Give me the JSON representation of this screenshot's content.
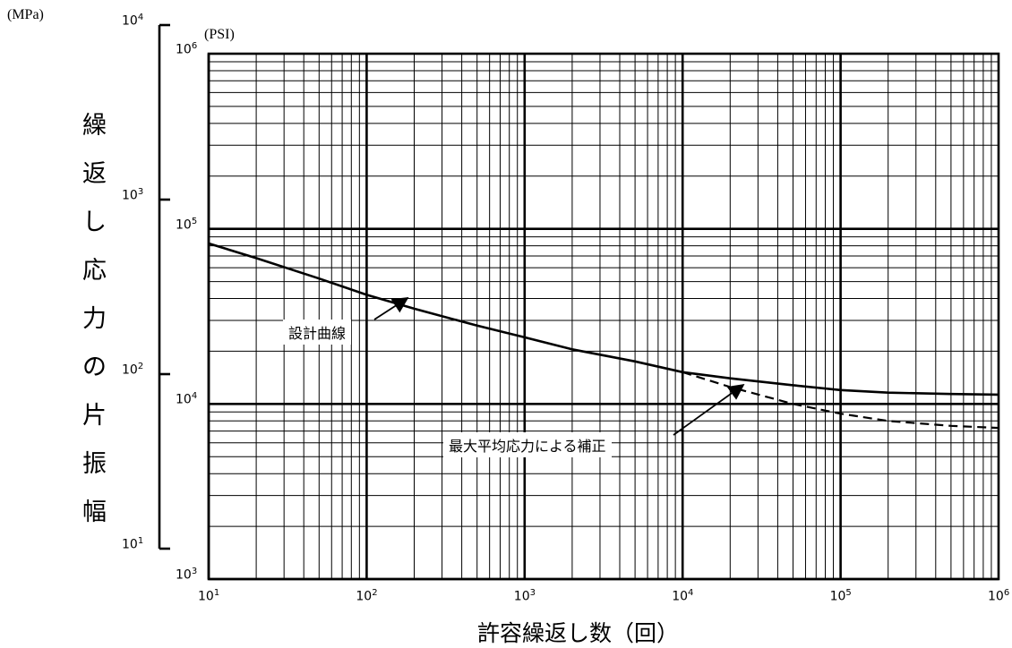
{
  "chart_data": {
    "type": "line",
    "xlabel": "許容繰返し数（回）",
    "ylabel": "繰返し応力の片振幅",
    "left_axis_unit": "(MPa)",
    "right_axis_unit": "(PSI)",
    "x_scale": "log",
    "y_scale": "log",
    "xlim": [
      10,
      1000000
    ],
    "ylim_psi": [
      1000,
      1000000
    ],
    "ylim_mpa": [
      10,
      10000
    ],
    "grid": true,
    "x_ticks": [
      {
        "base": "10",
        "exp": "1"
      },
      {
        "base": "10",
        "exp": "2"
      },
      {
        "base": "10",
        "exp": "3"
      },
      {
        "base": "10",
        "exp": "4"
      },
      {
        "base": "10",
        "exp": "5"
      },
      {
        "base": "10",
        "exp": "6"
      }
    ],
    "psi_ticks": [
      {
        "base": "10",
        "exp": "3"
      },
      {
        "base": "10",
        "exp": "4"
      },
      {
        "base": "10",
        "exp": "5"
      },
      {
        "base": "10",
        "exp": "6"
      }
    ],
    "mpa_ticks": [
      {
        "base": "10",
        "exp": "1"
      },
      {
        "base": "10",
        "exp": "2"
      },
      {
        "base": "10",
        "exp": "3"
      },
      {
        "base": "10",
        "exp": "4"
      }
    ],
    "series": [
      {
        "name": "設計曲線",
        "style": "solid",
        "x": [
          10,
          20,
          50,
          100,
          200,
          500,
          1000,
          2000,
          5000,
          10000,
          20000,
          50000,
          100000,
          200000,
          500000,
          1000000
        ],
        "y": [
          82500,
          68000,
          52000,
          42000,
          35000,
          28000,
          24000,
          20500,
          17500,
          15200,
          14000,
          12800,
          12000,
          11600,
          11400,
          11300
        ]
      },
      {
        "name": "最大平均応力による補正",
        "style": "dashed",
        "x": [
          10000,
          20000,
          50000,
          100000,
          200000,
          500000,
          1000000
        ],
        "y": [
          15200,
          12500,
          10000,
          8800,
          8000,
          7500,
          7300
        ]
      }
    ],
    "annotations": [
      {
        "text": "設計曲線",
        "target": {
          "x": 200,
          "y": 35000
        }
      },
      {
        "text": "最大平均応力による補正",
        "target": {
          "x": 30000,
          "y": 11800
        }
      }
    ]
  }
}
